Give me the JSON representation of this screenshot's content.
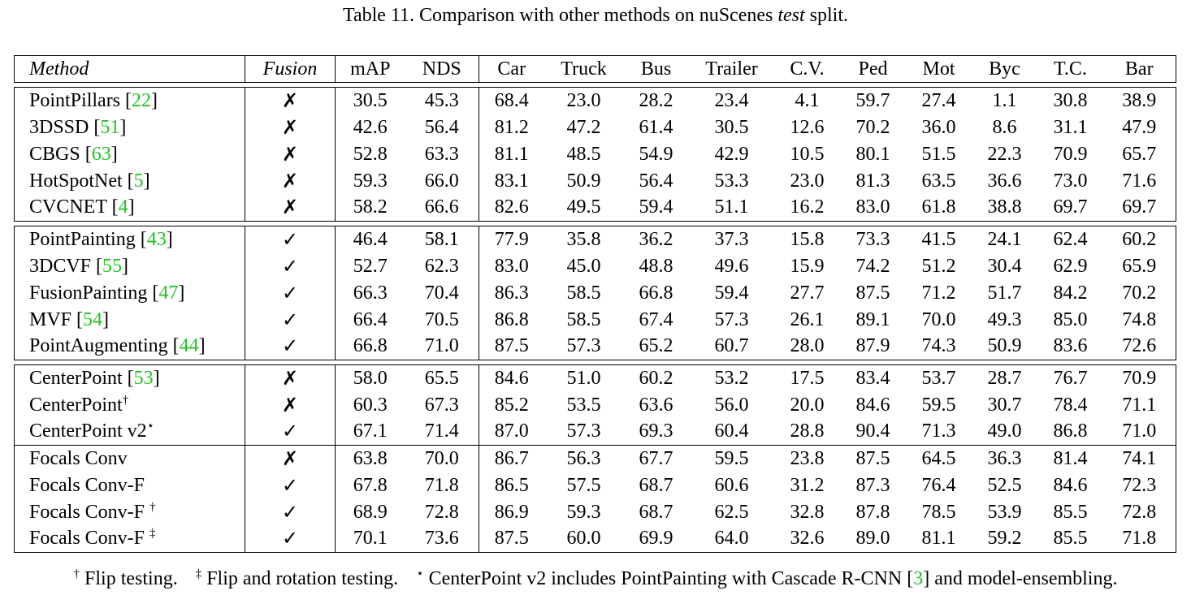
{
  "caption": {
    "prefix": "Table 11. Comparison with other methods on nuScenes ",
    "italic": "test",
    "suffix": " split."
  },
  "headers": [
    "Method",
    "Fusion",
    "mAP",
    "NDS",
    "Car",
    "Truck",
    "Bus",
    "Trailer",
    "C.V.",
    "Ped",
    "Mot",
    "Byc",
    "T.C.",
    "Bar"
  ],
  "groups": [
    [
      {
        "method": "PointPillars",
        "cite": "22",
        "sup": "",
        "fusion": "✗",
        "values": [
          "30.5",
          "45.3",
          "68.4",
          "23.0",
          "28.2",
          "23.4",
          "4.1",
          "59.7",
          "27.4",
          "1.1",
          "30.8",
          "38.9"
        ]
      },
      {
        "method": "3DSSD",
        "cite": "51",
        "sup": "",
        "fusion": "✗",
        "values": [
          "42.6",
          "56.4",
          "81.2",
          "47.2",
          "61.4",
          "30.5",
          "12.6",
          "70.2",
          "36.0",
          "8.6",
          "31.1",
          "47.9"
        ]
      },
      {
        "method": "CBGS",
        "cite": "63",
        "sup": "",
        "fusion": "✗",
        "values": [
          "52.8",
          "63.3",
          "81.1",
          "48.5",
          "54.9",
          "42.9",
          "10.5",
          "80.1",
          "51.5",
          "22.3",
          "70.9",
          "65.7"
        ]
      },
      {
        "method": "HotSpotNet",
        "cite": "5",
        "sup": "",
        "fusion": "✗",
        "values": [
          "59.3",
          "66.0",
          "83.1",
          "50.9",
          "56.4",
          "53.3",
          "23.0",
          "81.3",
          "63.5",
          "36.6",
          "73.0",
          "71.6"
        ]
      },
      {
        "method": "CVCNET",
        "cite": "4",
        "sup": "",
        "fusion": "✗",
        "values": [
          "58.2",
          "66.6",
          "82.6",
          "49.5",
          "59.4",
          "51.1",
          "16.2",
          "83.0",
          "61.8",
          "38.8",
          "69.7",
          "69.7"
        ]
      }
    ],
    [
      {
        "method": "PointPainting",
        "cite": "43",
        "sup": "",
        "fusion": "✓",
        "values": [
          "46.4",
          "58.1",
          "77.9",
          "35.8",
          "36.2",
          "37.3",
          "15.8",
          "73.3",
          "41.5",
          "24.1",
          "62.4",
          "60.2"
        ]
      },
      {
        "method": "3DCVF",
        "cite": "55",
        "sup": "",
        "fusion": "✓",
        "values": [
          "52.7",
          "62.3",
          "83.0",
          "45.0",
          "48.8",
          "49.6",
          "15.9",
          "74.2",
          "51.2",
          "30.4",
          "62.9",
          "65.9"
        ]
      },
      {
        "method": "FusionPainting",
        "cite": "47",
        "sup": "",
        "fusion": "✓",
        "values": [
          "66.3",
          "70.4",
          "86.3",
          "58.5",
          "66.8",
          "59.4",
          "27.7",
          "87.5",
          "71.2",
          "51.7",
          "84.2",
          "70.2"
        ]
      },
      {
        "method": "MVF",
        "cite": "54",
        "sup": "",
        "fusion": "✓",
        "values": [
          "66.4",
          "70.5",
          "86.8",
          "58.5",
          "67.4",
          "57.3",
          "26.1",
          "89.1",
          "70.0",
          "49.3",
          "85.0",
          "74.8"
        ]
      },
      {
        "method": "PointAugmenting",
        "cite": "44",
        "sup": "",
        "fusion": "✓",
        "values": [
          "66.8",
          "71.0",
          "87.5",
          "57.3",
          "65.2",
          "60.7",
          "28.0",
          "87.9",
          "74.3",
          "50.9",
          "83.6",
          "72.6"
        ]
      }
    ],
    [
      {
        "method": "CenterPoint",
        "cite": "53",
        "sup": "",
        "fusion": "✗",
        "values": [
          "58.0",
          "65.5",
          "84.6",
          "51.0",
          "60.2",
          "53.2",
          "17.5",
          "83.4",
          "53.7",
          "28.7",
          "76.7",
          "70.9"
        ]
      },
      {
        "method": "CenterPoint",
        "cite": "",
        "sup": "†",
        "fusion": "✗",
        "values": [
          "60.3",
          "67.3",
          "85.2",
          "53.5",
          "63.6",
          "56.0",
          "20.0",
          "84.6",
          "59.5",
          "30.7",
          "78.4",
          "71.1"
        ]
      },
      {
        "method": "CenterPoint v2",
        "cite": "",
        "sup": "⋆",
        "fusion": "✓",
        "values": [
          "67.1",
          "71.4",
          "87.0",
          "57.3",
          "69.3",
          "60.4",
          "28.8",
          "90.4",
          "71.3",
          "49.0",
          "86.8",
          "71.0"
        ]
      }
    ],
    [
      {
        "method": "Focals Conv",
        "cite": "",
        "sup": "",
        "fusion": "✗",
        "values": [
          "63.8",
          "70.0",
          "86.7",
          "56.3",
          "67.7",
          "59.5",
          "23.8",
          "87.5",
          "64.5",
          "36.3",
          "81.4",
          "74.1"
        ]
      },
      {
        "method": "Focals Conv-F",
        "cite": "",
        "sup": "",
        "fusion": "✓",
        "values": [
          "67.8",
          "71.8",
          "86.5",
          "57.5",
          "68.7",
          "60.6",
          "31.2",
          "87.3",
          "76.4",
          "52.5",
          "84.6",
          "72.3"
        ]
      },
      {
        "method": "Focals Conv-F ",
        "cite": "",
        "sup": "†",
        "fusion": "✓",
        "values": [
          "68.9",
          "72.8",
          "86.9",
          "59.3",
          "68.7",
          "62.5",
          "32.8",
          "87.8",
          "78.5",
          "53.9",
          "85.5",
          "72.8"
        ]
      },
      {
        "method": "Focals Conv-F ",
        "cite": "",
        "sup": "‡",
        "fusion": "✓",
        "bold_cols": [
          0,
          1
        ],
        "values": [
          "70.1",
          "73.6",
          "87.5",
          "60.0",
          "69.9",
          "64.0",
          "32.6",
          "89.0",
          "81.1",
          "59.2",
          "85.5",
          "71.8"
        ]
      }
    ]
  ],
  "footnote": {
    "dagger_sym": "†",
    "dagger_text": " Flip testing.",
    "ddagger_sym": "‡",
    "ddagger_text": " Flip and rotation testing.",
    "star_sym": "⋆",
    "star_text": " CenterPoint v2 includes PointPainting with Cascade R-CNN [",
    "star_cite": "3",
    "star_tail": "] and model-ensembling."
  }
}
